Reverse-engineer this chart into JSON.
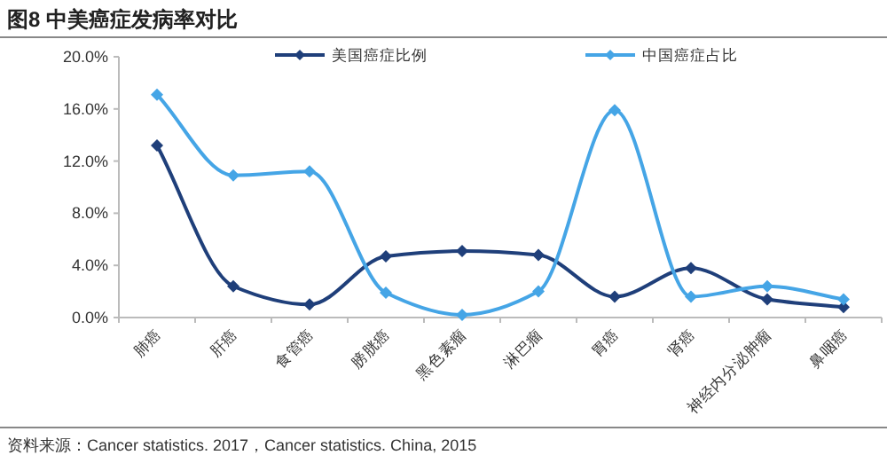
{
  "chart_data": {
    "type": "line",
    "title": "图8  中美癌症发病率对比",
    "categories": [
      "肺癌",
      "肝癌",
      "食管癌",
      "膀胱癌",
      "黑色素瘤",
      "淋巴瘤",
      "胃癌",
      "肾癌",
      "神经内分泌肿瘤",
      "鼻咽癌"
    ],
    "series": [
      {
        "name": "美国癌症比例",
        "color": "#1f3f7a",
        "values": [
          13.2,
          2.4,
          1.0,
          4.7,
          5.1,
          4.8,
          1.6,
          3.8,
          1.4,
          0.8
        ]
      },
      {
        "name": "中国癌症占比",
        "color": "#45a5e6",
        "values": [
          17.1,
          10.9,
          11.2,
          1.9,
          0.2,
          2.0,
          15.9,
          1.6,
          2.4,
          1.4
        ]
      }
    ],
    "ylim": [
      0,
      20
    ],
    "yticks": [
      {
        "value": 0,
        "label": "0.0%"
      },
      {
        "value": 4,
        "label": "4.0%"
      },
      {
        "value": 8,
        "label": "8.0%"
      },
      {
        "value": 12,
        "label": "12.0%"
      },
      {
        "value": 16,
        "label": "16.0%"
      },
      {
        "value": 20,
        "label": "20.0%"
      }
    ],
    "legend": "top",
    "marker": "diamond",
    "line_style": "solid",
    "grid": false,
    "annotations": [
      "资料来源：Cancer statistics. 2017，Cancer statistics. China, 2015"
    ]
  }
}
